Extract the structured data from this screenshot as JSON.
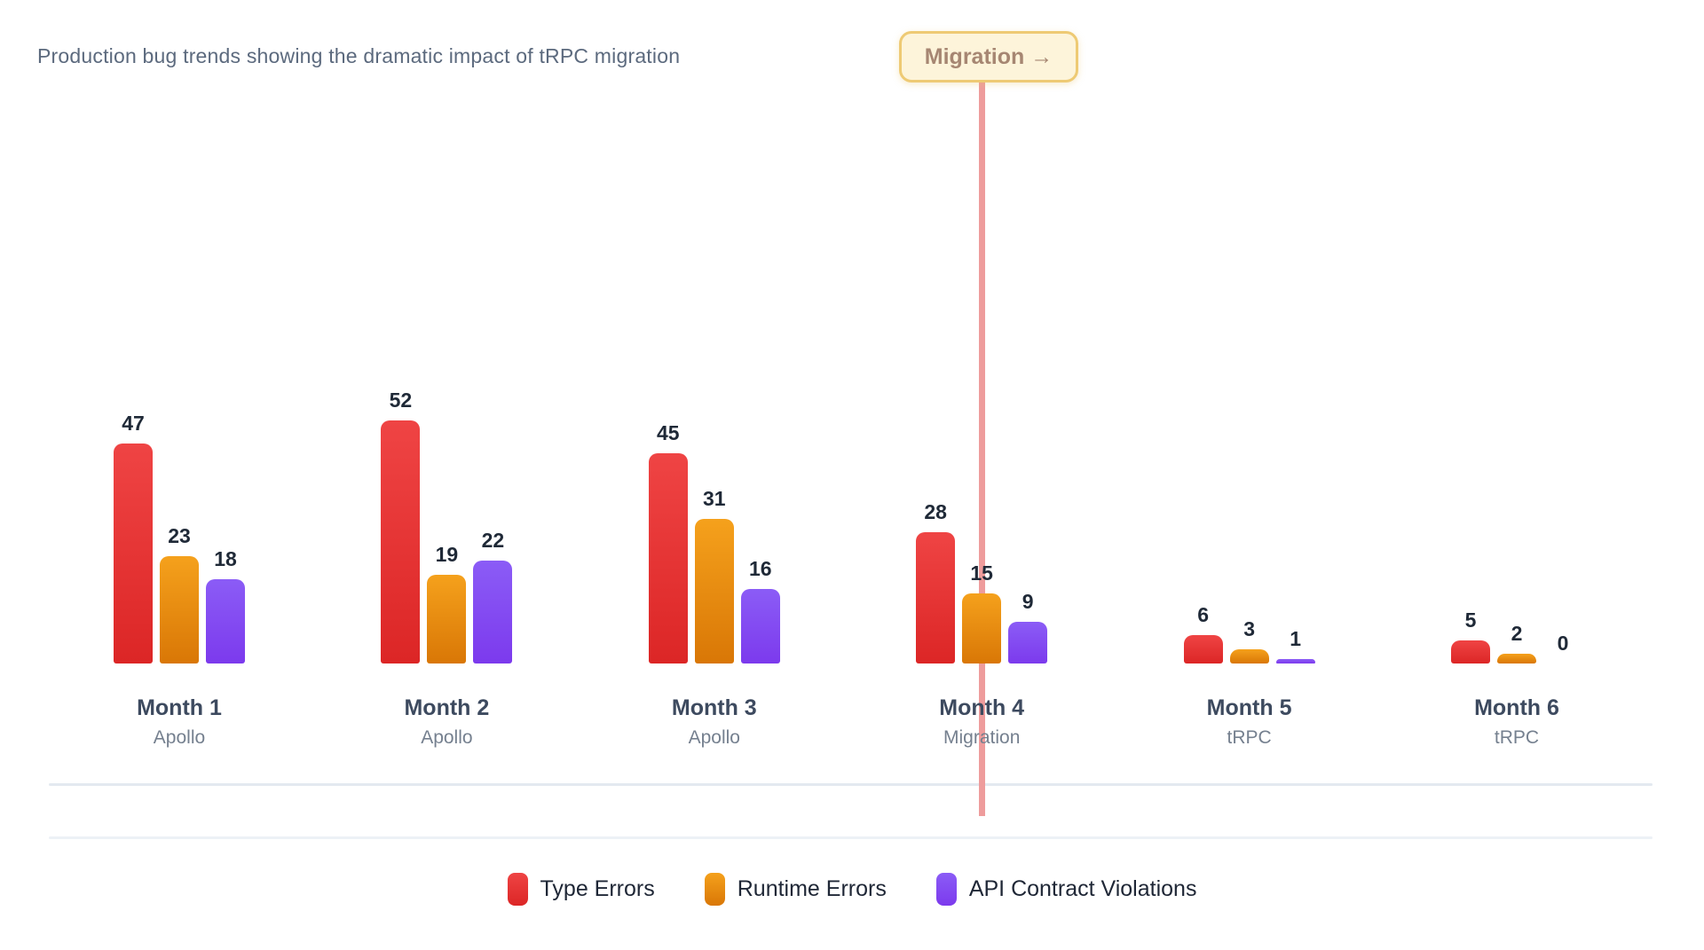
{
  "title": "Production bug trends showing the dramatic impact of tRPC migration",
  "migration_badge": {
    "label": "Migration →"
  },
  "colors": {
    "badge_bg": "#fdf4da",
    "badge_border": "#eeca74",
    "badge_text": "#a68672",
    "migration_line": "#ee9c9c"
  },
  "chart_data": {
    "type": "bar",
    "title": "Production bug trends showing the dramatic impact of tRPC migration",
    "categories": [
      "Month 1",
      "Month 2",
      "Month 3",
      "Month 4",
      "Month 5",
      "Month 6"
    ],
    "sublabels": [
      "Apollo",
      "Apollo",
      "Apollo",
      "Migration",
      "tRPC",
      "tRPC"
    ],
    "series": [
      {
        "name": "Type Errors",
        "color_top": "#ef4444",
        "color_bottom": "#dc2626",
        "values": [
          47,
          52,
          45,
          28,
          6,
          5
        ]
      },
      {
        "name": "Runtime Errors",
        "color_top": "#f5a11c",
        "color_bottom": "#d97706",
        "values": [
          23,
          19,
          31,
          15,
          3,
          2
        ]
      },
      {
        "name": "API Contract Violations",
        "color_top": "#8b5cf6",
        "color_bottom": "#7c3aed",
        "values": [
          18,
          22,
          16,
          9,
          1,
          0
        ]
      }
    ],
    "annotation": {
      "label": "Migration →",
      "x_category": "Month 4"
    },
    "legend_position": "bottom",
    "grid": false,
    "xlabel": "",
    "ylabel": "",
    "ylim": [
      0,
      52
    ]
  }
}
